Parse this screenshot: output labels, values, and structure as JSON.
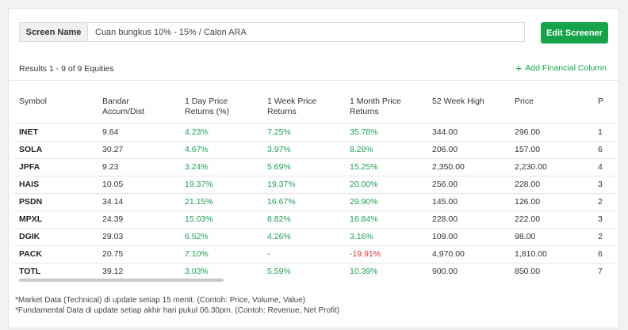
{
  "screen": {
    "label": "Screen Name",
    "value": "Cuan bungkus 10% - 15% / Calon ARA",
    "edit_button": "Edit Screener"
  },
  "results_text": "Results 1 - 9 of 9 Equities",
  "add_column_label": "Add Financial Column",
  "table": {
    "headers": [
      [
        "Symbol",
        ""
      ],
      [
        "Bandar",
        "Accum/Dist"
      ],
      [
        "1 Day Price",
        "Returns (%)"
      ],
      [
        "1 Week Price",
        "Returns"
      ],
      [
        "1 Month Price",
        "Returns"
      ],
      [
        "52 Week High",
        ""
      ],
      [
        "Price",
        ""
      ],
      [
        "P",
        ""
      ]
    ],
    "rows": [
      [
        "INET",
        "9.64",
        "4.23%",
        "7.25%",
        "35.78%",
        "344.00",
        "296.00",
        "1"
      ],
      [
        "SOLA",
        "30.27",
        "4.67%",
        "3.97%",
        "8.28%",
        "206.00",
        "157.00",
        "6"
      ],
      [
        "JPFA",
        "9.23",
        "3.24%",
        "5.69%",
        "15.25%",
        "2,350.00",
        "2,230.00",
        "4"
      ],
      [
        "HAIS",
        "10.05",
        "19.37%",
        "19.37%",
        "20.00%",
        "256.00",
        "228.00",
        "3"
      ],
      [
        "PSDN",
        "34.14",
        "21.15%",
        "16.67%",
        "29.90%",
        "145.00",
        "126.00",
        "2"
      ],
      [
        "MPXL",
        "24.39",
        "15.03%",
        "8.82%",
        "16.84%",
        "228.00",
        "222.00",
        "3"
      ],
      [
        "DGIK",
        "29.03",
        "6.52%",
        "4.26%",
        "3.16%",
        "109.00",
        "98.00",
        "2"
      ],
      [
        "PACK",
        "20.75",
        "7.10%",
        "-",
        "-19.91%",
        "4,970.00",
        "1,810.00",
        "6"
      ],
      [
        "TOTL",
        "39.12",
        "3.03%",
        "5.59%",
        "10.39%",
        "900.00",
        "850.00",
        "7"
      ]
    ]
  },
  "footnotes": [
    "*Market Data (Technical) di update setiap 15 menit. (Contoh: Price, Volume, Value)",
    "*Fundamental Data di update setiap akhir hari pukul 06.30pm. (Contoh: Revenue, Net Profit)"
  ],
  "colors": {
    "accent": "#16a34a",
    "positive": "#1f9d55",
    "negative": "#e03131"
  }
}
